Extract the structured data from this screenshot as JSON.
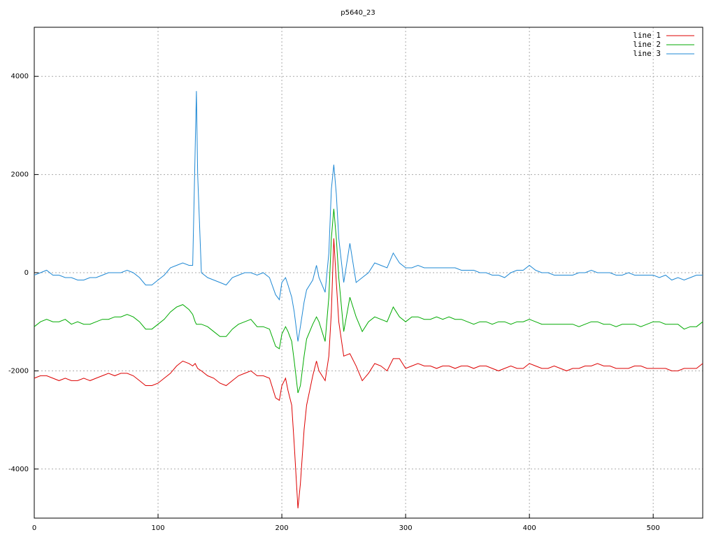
{
  "chart_data": {
    "type": "line",
    "title": "p5640_23",
    "x": [
      0,
      5,
      10,
      15,
      20,
      25,
      30,
      35,
      40,
      45,
      50,
      55,
      60,
      65,
      70,
      75,
      80,
      85,
      90,
      95,
      100,
      105,
      110,
      115,
      120,
      125,
      128,
      130,
      131,
      132,
      135,
      140,
      145,
      150,
      155,
      160,
      165,
      170,
      175,
      180,
      185,
      190,
      195,
      198,
      200,
      203,
      205,
      208,
      210,
      213,
      215,
      218,
      220,
      225,
      228,
      230,
      235,
      238,
      240,
      242,
      244,
      246,
      250,
      255,
      260,
      265,
      270,
      275,
      280,
      285,
      290,
      295,
      300,
      305,
      310,
      315,
      320,
      325,
      330,
      335,
      340,
      345,
      350,
      355,
      360,
      365,
      370,
      375,
      380,
      385,
      390,
      395,
      400,
      405,
      410,
      415,
      420,
      425,
      430,
      435,
      440,
      445,
      450,
      455,
      460,
      465,
      470,
      475,
      480,
      485,
      490,
      495,
      500,
      505,
      510,
      515,
      520,
      525,
      530,
      535,
      540
    ],
    "series": [
      {
        "name": "line 1",
        "color": "#dd0000",
        "values": [
          -2150,
          -2100,
          -2100,
          -2150,
          -2200,
          -2150,
          -2200,
          -2200,
          -2150,
          -2200,
          -2150,
          -2100,
          -2050,
          -2100,
          -2050,
          -2050,
          -2100,
          -2200,
          -2300,
          -2300,
          -2250,
          -2150,
          -2050,
          -1900,
          -1800,
          -1850,
          -1900,
          -1850,
          -1900,
          -1950,
          -2000,
          -2100,
          -2150,
          -2250,
          -2300,
          -2200,
          -2100,
          -2050,
          -2000,
          -2100,
          -2100,
          -2150,
          -2550,
          -2600,
          -2300,
          -2150,
          -2400,
          -2700,
          -3500,
          -4800,
          -4300,
          -3200,
          -2700,
          -2100,
          -1800,
          -2000,
          -2200,
          -1700,
          -800,
          700,
          -200,
          -1000,
          -1700,
          -1650,
          -1900,
          -2200,
          -2050,
          -1850,
          -1900,
          -2000,
          -1750,
          -1750,
          -1950,
          -1900,
          -1850,
          -1900,
          -1900,
          -1950,
          -1900,
          -1900,
          -1950,
          -1900,
          -1900,
          -1950,
          -1900,
          -1900,
          -1950,
          -2000,
          -1950,
          -1900,
          -1950,
          -1950,
          -1850,
          -1900,
          -1950,
          -1950,
          -1900,
          -1950,
          -2000,
          -1950,
          -1950,
          -1900,
          -1900,
          -1850,
          -1900,
          -1900,
          -1950,
          -1950,
          -1950,
          -1900,
          -1900,
          -1950,
          -1950,
          -1950,
          -1950,
          -2000,
          -2000,
          -1950,
          -1950,
          -1950,
          -1850
        ]
      },
      {
        "name": "line 2",
        "color": "#00aa00",
        "values": [
          -1100,
          -1000,
          -950,
          -1000,
          -1000,
          -950,
          -1050,
          -1000,
          -1050,
          -1050,
          -1000,
          -950,
          -950,
          -900,
          -900,
          -850,
          -900,
          -1000,
          -1150,
          -1150,
          -1050,
          -950,
          -800,
          -700,
          -650,
          -750,
          -850,
          -1000,
          -1050,
          -1050,
          -1050,
          -1100,
          -1200,
          -1300,
          -1300,
          -1150,
          -1050,
          -1000,
          -950,
          -1100,
          -1100,
          -1150,
          -1500,
          -1550,
          -1250,
          -1100,
          -1200,
          -1400,
          -1800,
          -2450,
          -2300,
          -1700,
          -1350,
          -1050,
          -900,
          -1000,
          -1400,
          -500,
          700,
          1300,
          700,
          -100,
          -1200,
          -500,
          -900,
          -1200,
          -1000,
          -900,
          -950,
          -1000,
          -700,
          -900,
          -1000,
          -900,
          -900,
          -950,
          -950,
          -900,
          -950,
          -900,
          -950,
          -950,
          -1000,
          -1050,
          -1000,
          -1000,
          -1050,
          -1000,
          -1000,
          -1050,
          -1000,
          -1000,
          -950,
          -1000,
          -1050,
          -1050,
          -1050,
          -1050,
          -1050,
          -1050,
          -1100,
          -1050,
          -1000,
          -1000,
          -1050,
          -1050,
          -1100,
          -1050,
          -1050,
          -1050,
          -1100,
          -1050,
          -1000,
          -1000,
          -1050,
          -1050,
          -1050,
          -1150,
          -1100,
          -1100,
          -1000
        ]
      },
      {
        "name": "line 3",
        "color": "#1e88d4",
        "values": [
          -50,
          0,
          50,
          -50,
          -50,
          -100,
          -100,
          -150,
          -150,
          -100,
          -100,
          -50,
          0,
          0,
          0,
          50,
          0,
          -100,
          -250,
          -250,
          -150,
          -50,
          100,
          150,
          200,
          150,
          150,
          2500,
          3700,
          2000,
          0,
          -100,
          -150,
          -200,
          -250,
          -100,
          -50,
          0,
          0,
          -50,
          0,
          -100,
          -450,
          -550,
          -200,
          -100,
          -250,
          -500,
          -800,
          -1400,
          -1100,
          -600,
          -350,
          -150,
          150,
          -100,
          -400,
          400,
          1700,
          2200,
          1600,
          700,
          -200,
          600,
          -200,
          -100,
          0,
          200,
          150,
          100,
          400,
          200,
          100,
          100,
          150,
          100,
          100,
          100,
          100,
          100,
          100,
          50,
          50,
          50,
          0,
          0,
          -50,
          -50,
          -100,
          0,
          50,
          50,
          150,
          50,
          0,
          0,
          -50,
          -50,
          -50,
          -50,
          0,
          0,
          50,
          0,
          0,
          0,
          -50,
          -50,
          0,
          -50,
          -50,
          -50,
          -50,
          -100,
          -50,
          -150,
          -100,
          -150,
          -100,
          -50,
          -50
        ]
      }
    ],
    "xlim": [
      0,
      540
    ],
    "xticks": [
      0,
      100,
      200,
      300,
      400,
      500
    ],
    "ylim": [
      -5000,
      5000
    ],
    "yticks": [
      -4000,
      -2000,
      0,
      2000,
      4000
    ],
    "grid": true,
    "legend": "top-right"
  }
}
